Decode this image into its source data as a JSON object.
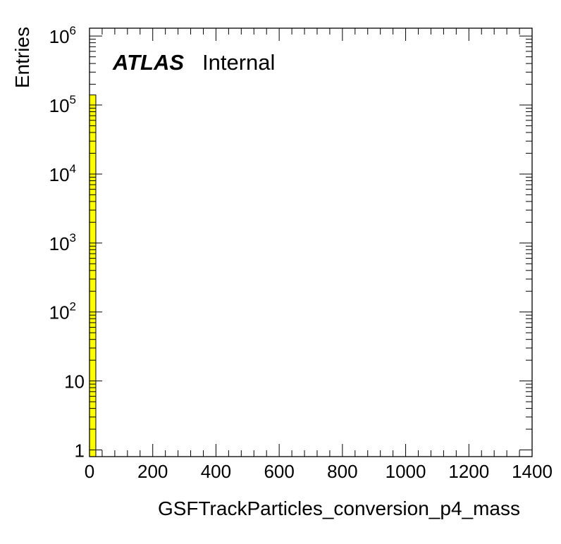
{
  "chart_data": {
    "type": "bar",
    "subtype": "histogram",
    "xlabel": "GSFTrackParticles_conversion_p4_mass",
    "ylabel": "Entries",
    "xlim": [
      0,
      1400
    ],
    "ylim": [
      0.8,
      1300000
    ],
    "y_scale": "log",
    "x_ticks": [
      {
        "value": 0,
        "label": "0"
      },
      {
        "value": 200,
        "label": "200"
      },
      {
        "value": 400,
        "label": "400"
      },
      {
        "value": 600,
        "label": "600"
      },
      {
        "value": 800,
        "label": "800"
      },
      {
        "value": 1000,
        "label": "1000"
      },
      {
        "value": 1200,
        "label": "1200"
      },
      {
        "value": 1400,
        "label": "1400"
      }
    ],
    "y_ticks": [
      {
        "value": 1,
        "base": "1",
        "exp": ""
      },
      {
        "value": 10,
        "base": "10",
        "exp": ""
      },
      {
        "value": 100,
        "base": "10",
        "exp": "2"
      },
      {
        "value": 1000,
        "base": "10",
        "exp": "3"
      },
      {
        "value": 10000,
        "base": "10",
        "exp": "4"
      },
      {
        "value": 100000,
        "base": "10",
        "exp": "5"
      },
      {
        "value": 1000000,
        "base": "10",
        "exp": "6"
      }
    ],
    "bins": [
      {
        "low": 0,
        "high": 20,
        "value": 140000
      }
    ],
    "bar_color": "#ffff00",
    "grid": false,
    "label": {
      "brand": "ATLAS",
      "status": "Internal"
    }
  }
}
